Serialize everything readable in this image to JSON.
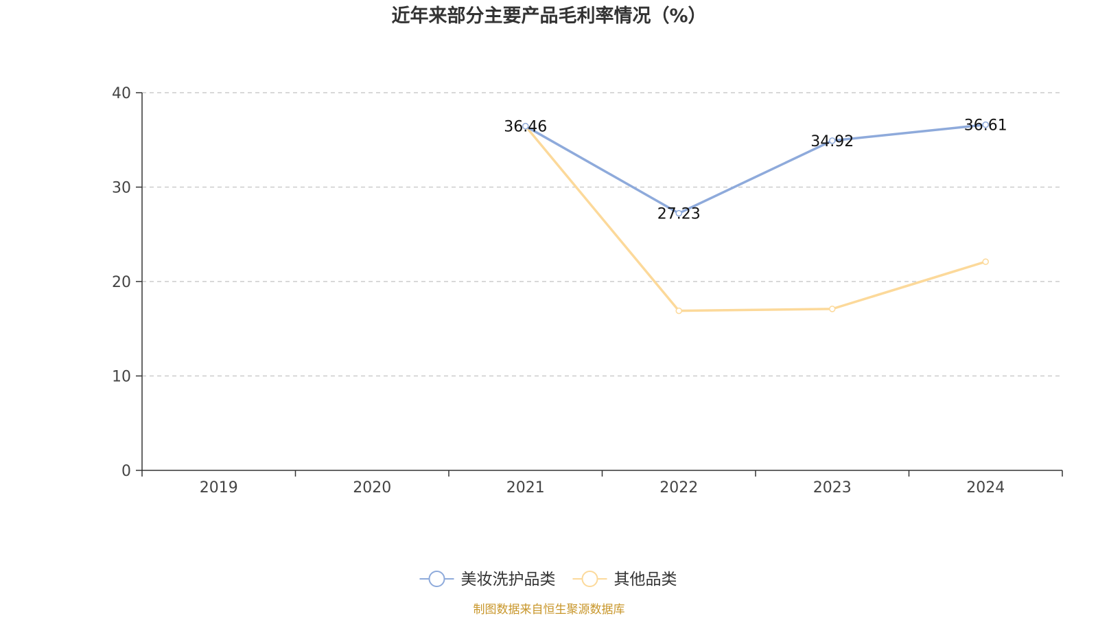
{
  "title": "近年来部分主要产品毛利率情况（%）",
  "source": "制图数据来自恒生聚源数据库",
  "colors": {
    "series_blue": "#8eaadb",
    "series_yellow": "#fcd99a",
    "source": "#c8962a",
    "grid": "#cccccc",
    "axis": "#333333"
  },
  "chart_data": {
    "type": "line",
    "title": "近年来部分主要产品毛利率情况（%）",
    "categories": [
      "2019",
      "2020",
      "2021",
      "2022",
      "2023",
      "2024"
    ],
    "ylim": [
      0,
      40
    ],
    "yticks": [
      0,
      10,
      20,
      30,
      40
    ],
    "grid": true,
    "legend_position": "bottom-center",
    "series": [
      {
        "name": "美妆洗护品类",
        "color": "#8eaadb",
        "values": [
          null,
          null,
          36.46,
          27.23,
          34.92,
          36.61
        ],
        "labels": [
          null,
          null,
          "36.46",
          "27.23",
          "34.92",
          "36.61"
        ]
      },
      {
        "name": "其他品类",
        "color": "#fcd99a",
        "values": [
          null,
          null,
          36.46,
          16.9,
          17.1,
          22.1
        ],
        "labels": [
          null,
          null,
          null,
          null,
          null,
          null
        ]
      }
    ]
  }
}
